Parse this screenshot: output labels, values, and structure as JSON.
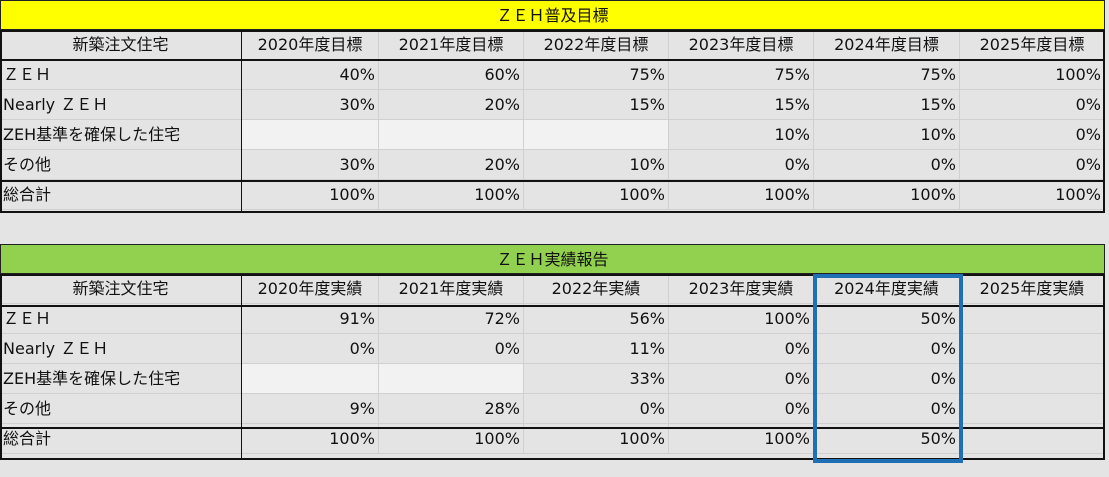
{
  "target": {
    "title": "ＺＥＨ普及目標",
    "header": [
      "新築注文住宅",
      "2020年度目標",
      "2021年度目標",
      "2022年度目標",
      "2023年度目標",
      "2024年度目標",
      "2025年度目標"
    ],
    "rows": [
      {
        "label": "ＺＥＨ",
        "values": [
          "40%",
          "60%",
          "75%",
          "75%",
          "75%",
          "100%"
        ]
      },
      {
        "label": "Nearly ＺＥＨ",
        "values": [
          "30%",
          "20%",
          "15%",
          "15%",
          "15%",
          "0%"
        ]
      },
      {
        "label": "ZEH基準を確保した住宅",
        "values": [
          "",
          "",
          "",
          "10%",
          "10%",
          "0%"
        ]
      },
      {
        "label": "その他",
        "values": [
          "30%",
          "20%",
          "10%",
          "0%",
          "0%",
          "0%"
        ]
      },
      {
        "label": "総合計",
        "values": [
          "100%",
          "100%",
          "100%",
          "100%",
          "100%",
          "100%"
        ]
      }
    ]
  },
  "actual": {
    "title": "ＺＥＨ実績報告",
    "header": [
      "新築注文住宅",
      "2020年度実績",
      "2021年度実績",
      "2022年実績",
      "2023年度実績",
      "2024年度実績",
      "2025年度実績"
    ],
    "rows": [
      {
        "label": "ＺＥＨ",
        "values": [
          "91%",
          "72%",
          "56%",
          "100%",
          "50%",
          ""
        ]
      },
      {
        "label": "Nearly ＺＥＨ",
        "values": [
          "0%",
          "0%",
          "11%",
          "0%",
          "0%",
          ""
        ]
      },
      {
        "label": "ZEH基準を確保した住宅",
        "values": [
          "",
          "",
          "33%",
          "0%",
          "0%",
          ""
        ]
      },
      {
        "label": "その他",
        "values": [
          "9%",
          "28%",
          "0%",
          "0%",
          "0%",
          ""
        ]
      },
      {
        "label": "総合計",
        "values": [
          "100%",
          "100%",
          "100%",
          "100%",
          "50%",
          ""
        ]
      }
    ]
  },
  "colors": {
    "target_banner": "#ffff00",
    "actual_banner": "#92d050",
    "highlight_border": "#1f6fb5",
    "empty_cell": "#f2f2f2"
  }
}
